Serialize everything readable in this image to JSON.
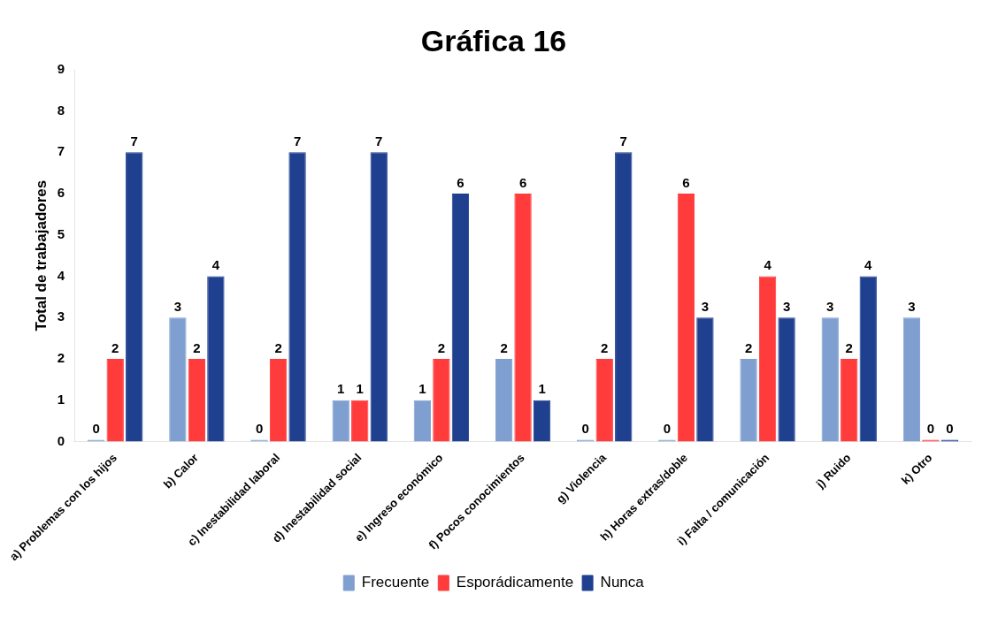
{
  "chart_data": {
    "type": "bar",
    "title": "Gráfica 16",
    "ylabel": "Total de trabajadores",
    "categories": [
      "a) Problemas con los hijos",
      "b) Calor",
      "c) Inestabilidad laboral",
      "d) Inestabilidad social",
      "e) Ingreso económico",
      "f) Pocos conocimientos",
      "g) Violencia",
      "h) Horas extras/doble",
      "i) Falta / comunicación",
      "j) Ruido",
      "k) Otro"
    ],
    "series": [
      {
        "name": "Frecuente",
        "color": "#7f9fd0",
        "values": [
          0,
          3,
          0,
          1,
          1,
          2,
          0,
          0,
          2,
          3,
          3
        ]
      },
      {
        "name": "Esporádicamente",
        "color": "#ff3b3b",
        "values": [
          2,
          2,
          2,
          1,
          2,
          6,
          2,
          6,
          4,
          2,
          0
        ]
      },
      {
        "name": "Nunca",
        "color": "#1f3f8f",
        "values": [
          7,
          4,
          7,
          7,
          6,
          1,
          7,
          3,
          3,
          4,
          0
        ]
      }
    ],
    "ylim": [
      0,
      9
    ],
    "yticks": [
      0,
      1,
      2,
      3,
      4,
      5,
      6,
      7,
      8,
      9
    ],
    "grid": false,
    "legend": "bottom",
    "data_labels": true
  }
}
